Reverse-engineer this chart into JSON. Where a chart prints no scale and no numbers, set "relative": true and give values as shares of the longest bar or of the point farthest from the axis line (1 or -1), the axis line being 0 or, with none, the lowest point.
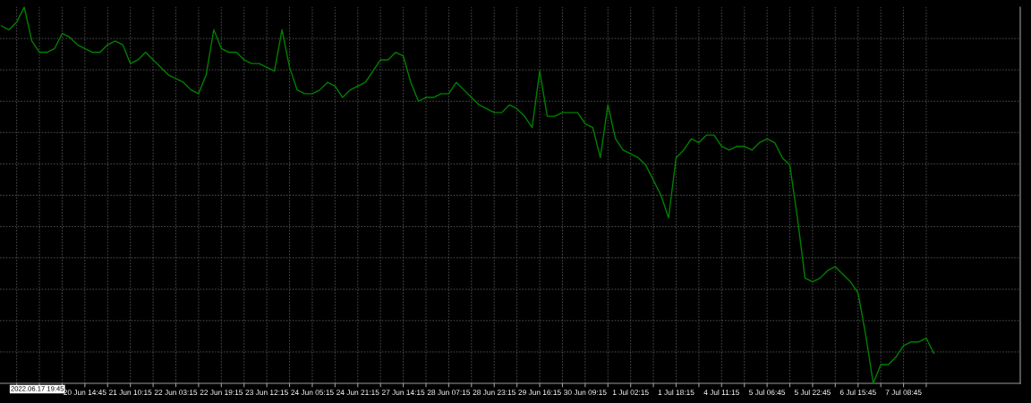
{
  "chart_data": {
    "type": "line",
    "relative": true,
    "grid": true,
    "line_style": "solid",
    "marker": "none",
    "annotations": [
      "2022.06.17 19:45"
    ],
    "categories": [
      null,
      null,
      null,
      null,
      null,
      null,
      null,
      null,
      null,
      null,
      null,
      "20 Jun 14:45",
      null,
      null,
      null,
      null,
      null,
      "21 Jun 10:15",
      null,
      null,
      null,
      null,
      null,
      "22 Jun 03:15",
      null,
      null,
      null,
      null,
      null,
      "22 Jun 19:15",
      null,
      null,
      null,
      null,
      null,
      "23 Jun 12:15",
      null,
      null,
      null,
      null,
      null,
      "24 Jun 05:15",
      null,
      null,
      null,
      null,
      null,
      "24 Jun 21:15",
      null,
      null,
      null,
      null,
      null,
      "27 Jun 14:15",
      null,
      null,
      null,
      null,
      null,
      "28 Jun 07:15",
      null,
      null,
      null,
      null,
      null,
      "28 Jun 23:15",
      null,
      null,
      null,
      null,
      null,
      "29 Jun 16:15",
      null,
      null,
      null,
      null,
      null,
      "30 Jun 09:15",
      null,
      null,
      null,
      null,
      null,
      "1 Jul 02:15",
      null,
      null,
      null,
      null,
      null,
      "1 Jul 18:15",
      null,
      null,
      null,
      null,
      null,
      "4 Jul 11:15",
      null,
      null,
      null,
      null,
      null,
      "5 Jul 06:45",
      null,
      null,
      null,
      null,
      null,
      "5 Jul 22:45",
      null,
      null,
      null,
      null,
      null,
      "6 Jul 15:45",
      null,
      null,
      null,
      null,
      null,
      "7 Jul 08:45",
      null,
      null,
      null,
      null
    ],
    "series": [
      {
        "color": "#008000",
        "values": [
          0.95,
          0.94,
          0.96,
          1.0,
          0.91,
          0.88,
          0.88,
          0.89,
          0.93,
          0.92,
          0.9,
          0.89,
          0.88,
          0.88,
          0.9,
          0.91,
          0.9,
          0.85,
          0.86,
          0.88,
          0.86,
          0.84,
          0.82,
          0.81,
          0.8,
          0.78,
          0.77,
          0.82,
          0.94,
          0.89,
          0.88,
          0.88,
          0.86,
          0.85,
          0.85,
          0.84,
          0.83,
          0.94,
          0.84,
          0.78,
          0.77,
          0.77,
          0.78,
          0.8,
          0.79,
          0.76,
          0.78,
          0.79,
          0.8,
          0.83,
          0.86,
          0.86,
          0.88,
          0.87,
          0.8,
          0.75,
          0.76,
          0.76,
          0.77,
          0.77,
          0.8,
          0.78,
          0.76,
          0.74,
          0.73,
          0.72,
          0.72,
          0.74,
          0.73,
          0.71,
          0.68,
          0.83,
          0.71,
          0.71,
          0.72,
          0.72,
          0.72,
          0.69,
          0.68,
          0.6,
          0.74,
          0.65,
          0.62,
          0.61,
          0.6,
          0.58,
          0.54,
          0.5,
          0.44,
          0.6,
          0.62,
          0.65,
          0.64,
          0.66,
          0.66,
          0.63,
          0.62,
          0.63,
          0.63,
          0.62,
          0.64,
          0.65,
          0.64,
          0.6,
          0.58,
          0.44,
          0.28,
          0.27,
          0.28,
          0.3,
          0.31,
          0.29,
          0.27,
          0.24,
          0.13,
          0.0,
          0.05,
          0.05,
          0.07,
          0.1,
          0.11,
          0.11,
          0.12,
          0.08
        ]
      }
    ]
  }
}
